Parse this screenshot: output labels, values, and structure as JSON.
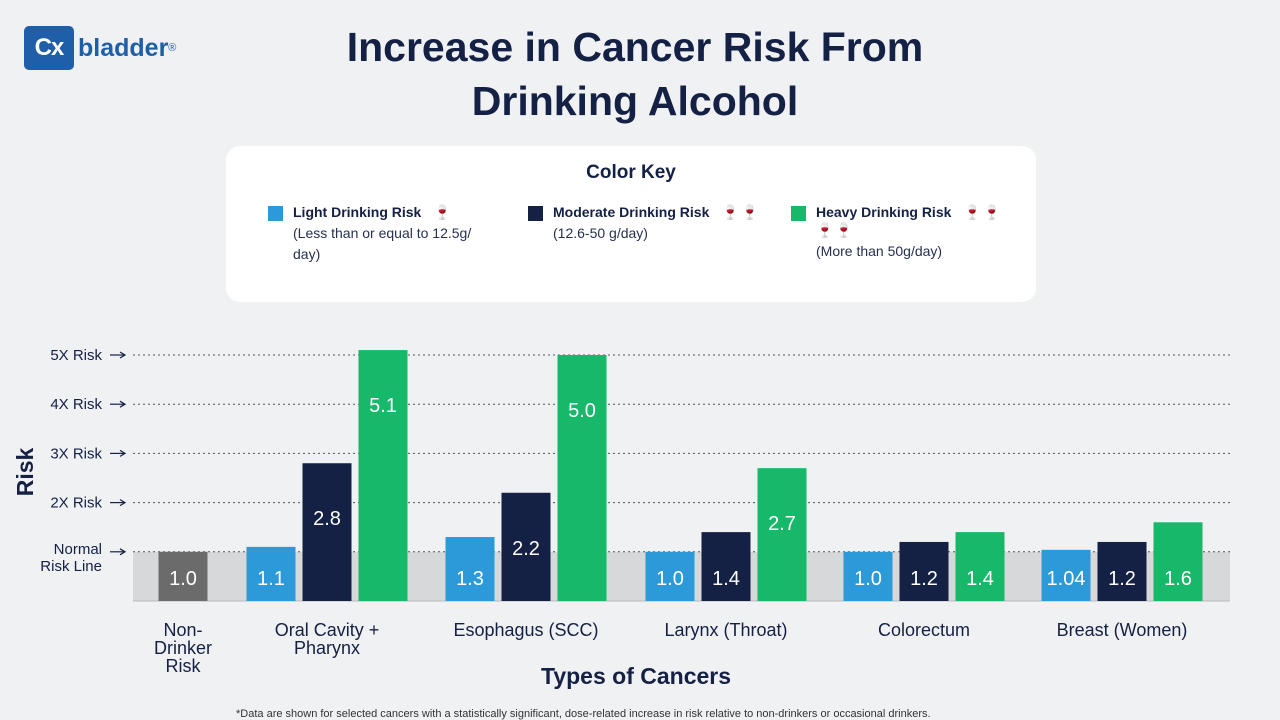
{
  "logo": {
    "mark": "Cx",
    "text": "bladder",
    "reg": "®"
  },
  "title": [
    "Increase in Cancer Risk From",
    "Drinking Alcohol"
  ],
  "key": {
    "title": "Color Key",
    "items": [
      {
        "name": "Light Drinking Risk",
        "glasses": "🍷",
        "desc": [
          "(Less than or equal to 12.5g/",
          "day)"
        ],
        "color": "#2c9ad8"
      },
      {
        "name": "Moderate Drinking Risk",
        "glasses": "🍷🍷",
        "desc": [
          "(12.6-50 g/day)"
        ],
        "color": "#142044"
      },
      {
        "name": "Heavy Drinking Risk",
        "glasses": "🍷🍷🍷🍷",
        "desc": [
          "(More than 50g/day)"
        ],
        "color": "#18b86a"
      }
    ]
  },
  "colors": {
    "baseline": "#6b6b6b",
    "light": "#2c9ad8",
    "moderate": "#142044",
    "heavy": "#18b86a",
    "band": "#d7d8da"
  },
  "chart_data": {
    "type": "bar",
    "title": "Increase in Cancer Risk From Drinking Alcohol",
    "xlabel": "Types of Cancers",
    "ylabel": "Risk",
    "ylim": [
      0,
      5
    ],
    "yticks": [
      {
        "value": 1,
        "label": [
          "Normal",
          "Risk Line"
        ]
      },
      {
        "value": 2,
        "label": [
          "2X Risk"
        ]
      },
      {
        "value": 3,
        "label": [
          "3X Risk"
        ]
      },
      {
        "value": 4,
        "label": [
          "4X Risk"
        ]
      },
      {
        "value": 5,
        "label": [
          "5X Risk"
        ]
      }
    ],
    "grid": true,
    "categories": [
      {
        "label": [
          "Non-",
          "Drinker",
          "Risk"
        ],
        "bars": [
          {
            "series": "baseline",
            "value": 1.0,
            "label": "1.0"
          }
        ]
      },
      {
        "label": [
          "Oral Cavity +",
          "Pharynx"
        ],
        "bars": [
          {
            "series": "light",
            "value": 1.1,
            "label": "1.1"
          },
          {
            "series": "moderate",
            "value": 2.8,
            "label": "2.8"
          },
          {
            "series": "heavy",
            "value": 5.1,
            "label": "5.1"
          }
        ]
      },
      {
        "label": [
          "Esophagus (SCC)"
        ],
        "bars": [
          {
            "series": "light",
            "value": 1.3,
            "label": "1.3"
          },
          {
            "series": "moderate",
            "value": 2.2,
            "label": "2.2"
          },
          {
            "series": "heavy",
            "value": 5.0,
            "label": "5.0"
          }
        ]
      },
      {
        "label": [
          "Larynx (Throat)"
        ],
        "bars": [
          {
            "series": "light",
            "value": 1.0,
            "label": "1.0"
          },
          {
            "series": "moderate",
            "value": 1.4,
            "label": "1.4"
          },
          {
            "series": "heavy",
            "value": 2.7,
            "label": "2.7"
          }
        ]
      },
      {
        "label": [
          "Colorectum"
        ],
        "bars": [
          {
            "series": "light",
            "value": 1.0,
            "label": "1.0"
          },
          {
            "series": "moderate",
            "value": 1.2,
            "label": "1.2"
          },
          {
            "series": "heavy",
            "value": 1.4,
            "label": "1.4"
          }
        ]
      },
      {
        "label": [
          "Breast (Women)"
        ],
        "bars": [
          {
            "series": "light",
            "value": 1.04,
            "label": "1.04"
          },
          {
            "series": "moderate",
            "value": 1.2,
            "label": "1.2"
          },
          {
            "series": "heavy",
            "value": 1.6,
            "label": "1.6"
          }
        ]
      }
    ]
  },
  "footnote": "*Data are shown for selected cancers with a statistically significant, dose-related increase in risk relative to non-drinkers or occasional drinkers."
}
